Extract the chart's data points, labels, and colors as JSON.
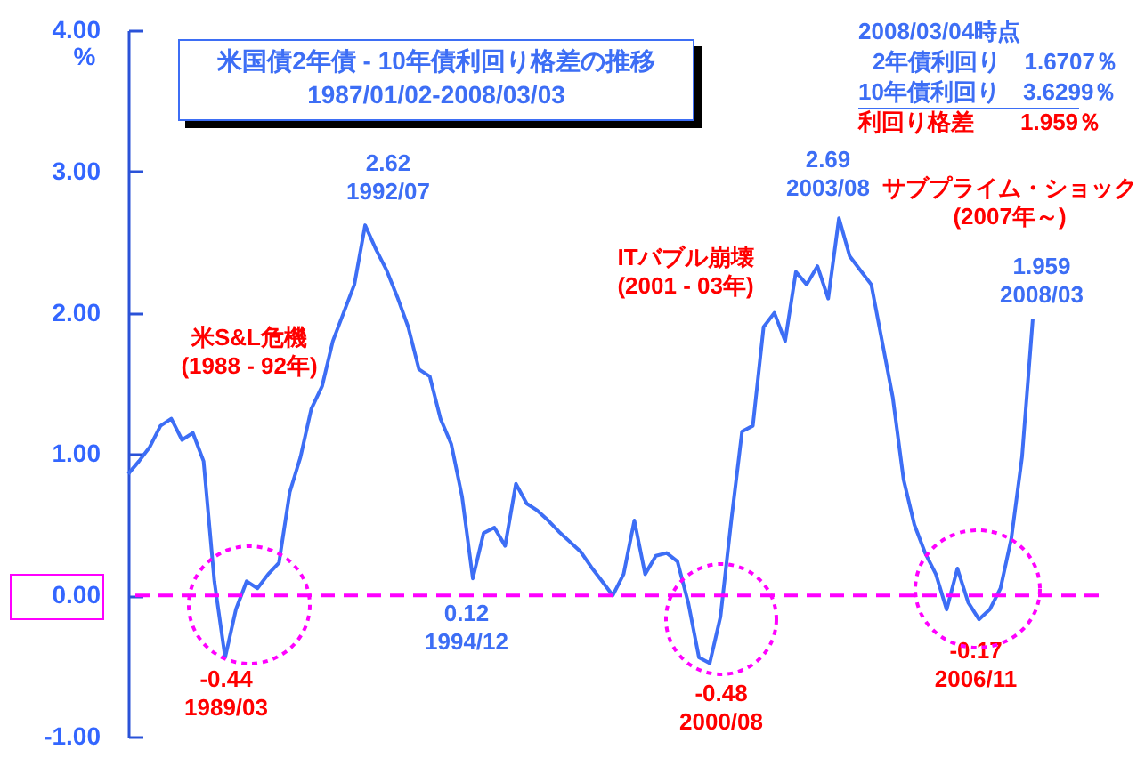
{
  "chart_data": {
    "type": "line",
    "title": "米国債2年債 - 10年債利回り格差の推移",
    "subtitle": "1987/01/02-2008/03/03",
    "ylabel": "%",
    "categories": [
      null,
      null,
      null,
      null,
      null,
      null,
      null,
      null,
      null,
      null,
      null,
      null,
      null,
      null,
      null,
      null,
      null,
      null,
      null,
      null,
      null,
      null,
      null,
      null,
      null,
      null,
      null,
      null,
      null,
      null,
      null,
      null,
      null,
      null,
      null,
      null,
      null,
      null,
      null,
      null,
      null,
      null,
      null,
      null,
      null,
      null,
      null,
      null,
      null,
      null,
      null,
      null,
      null,
      null,
      null,
      null,
      null,
      null,
      null,
      null,
      null,
      null,
      null,
      null,
      null,
      null,
      null,
      null,
      null,
      null,
      null,
      null,
      null,
      null,
      null,
      null,
      null,
      null,
      null,
      null,
      null,
      null,
      null,
      null,
      null
    ],
    "series": [
      {
        "color": "#3d6ef5",
        "values": [
          0.86,
          0.95,
          1.05,
          1.2,
          1.25,
          1.1,
          1.15,
          0.95,
          0.1,
          -0.44,
          -0.1,
          0.1,
          0.05,
          0.15,
          0.23,
          0.73,
          0.98,
          1.32,
          1.48,
          1.8,
          2.0,
          2.2,
          2.62,
          2.45,
          2.3,
          2.11,
          1.9,
          1.6,
          1.55,
          1.25,
          1.07,
          0.7,
          0.12,
          0.44,
          0.48,
          0.35,
          0.79,
          0.65,
          0.6,
          0.53,
          0.45,
          0.38,
          0.31,
          0.2,
          0.1,
          0.0,
          0.15,
          0.53,
          0.15,
          0.28,
          0.3,
          0.24,
          -0.05,
          -0.44,
          -0.48,
          -0.15,
          0.53,
          1.16,
          1.2,
          1.9,
          2.0,
          1.8,
          2.29,
          2.2,
          2.33,
          2.1,
          2.67,
          2.4,
          2.3,
          2.2,
          1.8,
          1.4,
          0.82,
          0.5,
          0.3,
          0.15,
          -0.1,
          0.19,
          -0.05,
          -0.17,
          -0.1,
          0.05,
          0.4,
          0.98,
          1.959
        ]
      }
    ],
    "ylim": [
      -1,
      4
    ],
    "yticks": [
      {
        "value": -1,
        "label": "-1.00"
      },
      {
        "value": 0,
        "label": "0.00"
      },
      {
        "value": 1,
        "label": "1.00"
      },
      {
        "value": 2,
        "label": "2.00"
      },
      {
        "value": 3,
        "label": "3.00"
      },
      {
        "value": 4,
        "label": "4.00"
      }
    ],
    "tick_labels": "y",
    "ref_lines": [
      {
        "axis": "y",
        "value": 0,
        "color": "#ff00ff",
        "line_style": "dashed"
      }
    ],
    "annotations": [
      "2.62\n1992/07",
      "-0.44\n1989/03",
      "0.12\n1994/12",
      "2.69\n2003/08",
      "-0.48\n2000/08",
      "-0.17\n2006/11",
      "1.959\n2008/03",
      "米S&L危機\n(1988 - 92年)",
      "ITバブル崩壊\n(2001 - 03年)",
      "サブプライム・ショック\n(2007年～)",
      "2008/03/04時点",
      "2年債利回り　1.6707％",
      "10年債利回り　3.6299％",
      "利回り格差　　1.959％"
    ]
  }
}
